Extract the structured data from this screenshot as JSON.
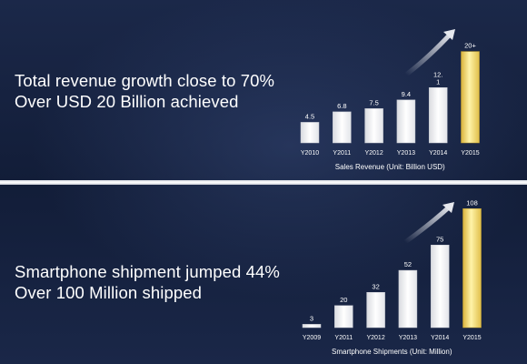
{
  "colors": {
    "background": "#15213f",
    "bar": "#ffffff",
    "highlight_bar": "#f2dc6e",
    "divider": "#e8eaef"
  },
  "panels": [
    {
      "headline": [
        "Total revenue growth close to 70%",
        "Over USD 20 Billion achieved"
      ],
      "chart_caption": "Sales Revenue  (Unit: Billion USD)",
      "arrow_icon": "growth-arrow-icon"
    },
    {
      "headline": [
        "Smartphone shipment jumped 44%",
        "Over 100 Million shipped"
      ],
      "chart_caption": "Smartphone Shipments  (Unit: Million)",
      "arrow_icon": "growth-arrow-icon"
    }
  ],
  "chart_data": [
    {
      "type": "bar",
      "title": "",
      "xlabel": "Sales Revenue  (Unit: Billion USD)",
      "ylabel": "",
      "categories": [
        "Y2010",
        "Y2011",
        "Y2012",
        "Y2013",
        "Y2014",
        "Y2015"
      ],
      "values": [
        4.5,
        6.8,
        7.5,
        9.4,
        12.1,
        20
      ],
      "value_labels": [
        "4.5",
        "6.8",
        "7.5",
        "9.4",
        "12.\n1",
        "20+"
      ],
      "highlight_index": 5,
      "ylim": [
        0,
        21
      ],
      "grid": false,
      "legend": "none"
    },
    {
      "type": "bar",
      "title": "",
      "xlabel": "Smartphone Shipments  (Unit: Million)",
      "ylabel": "",
      "categories": [
        "Y2009",
        "Y2011",
        "Y2012",
        "Y2013",
        "Y2014",
        "Y2015"
      ],
      "values": [
        3,
        20,
        32,
        52,
        75,
        108
      ],
      "value_labels": [
        "3",
        "20",
        "32",
        "52",
        "75",
        "108"
      ],
      "highlight_index": 5,
      "ylim": [
        0,
        112
      ],
      "grid": false,
      "legend": "none"
    }
  ]
}
